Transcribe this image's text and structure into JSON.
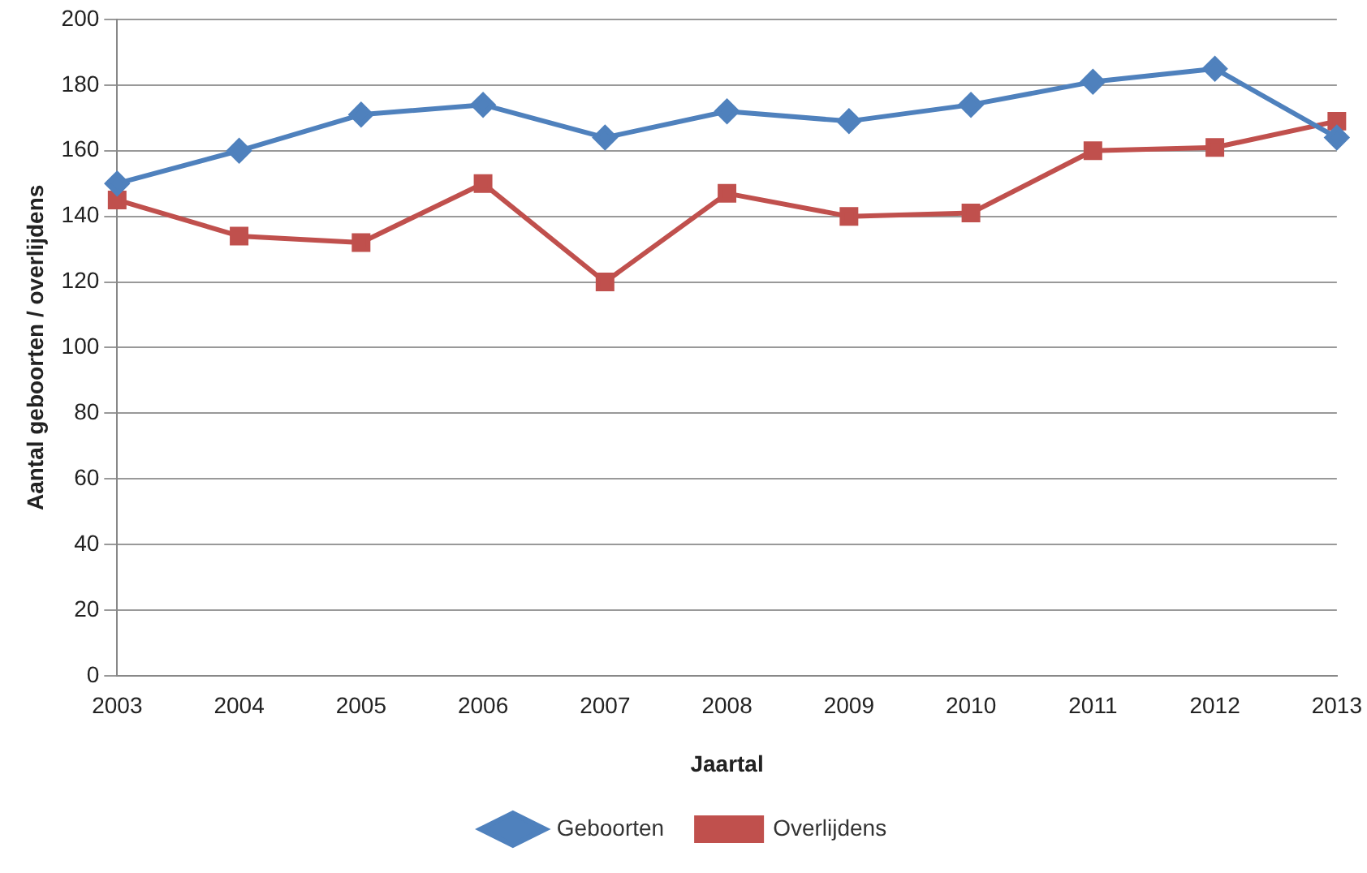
{
  "chart_data": {
    "type": "line",
    "xlabel": "Jaartal",
    "ylabel": "Aantal geboorten / overlijdens",
    "categories": [
      "2003",
      "2004",
      "2005",
      "2006",
      "2007",
      "2008",
      "2009",
      "2010",
      "2011",
      "2012",
      "2013"
    ],
    "series": [
      {
        "name": "Geboorten",
        "color": "#4f81bd",
        "marker": "diamond",
        "values": [
          150,
          160,
          171,
          174,
          164,
          172,
          169,
          174,
          181,
          185,
          164
        ]
      },
      {
        "name": "Overlijdens",
        "color": "#c0504d",
        "marker": "square",
        "values": [
          145,
          134,
          132,
          150,
          120,
          147,
          140,
          141,
          160,
          161,
          169
        ]
      }
    ],
    "ylim": [
      0,
      200
    ],
    "yticks": [
      0,
      20,
      40,
      60,
      80,
      100,
      120,
      140,
      160,
      180,
      200
    ],
    "grid": "y",
    "legend": "bottom"
  }
}
